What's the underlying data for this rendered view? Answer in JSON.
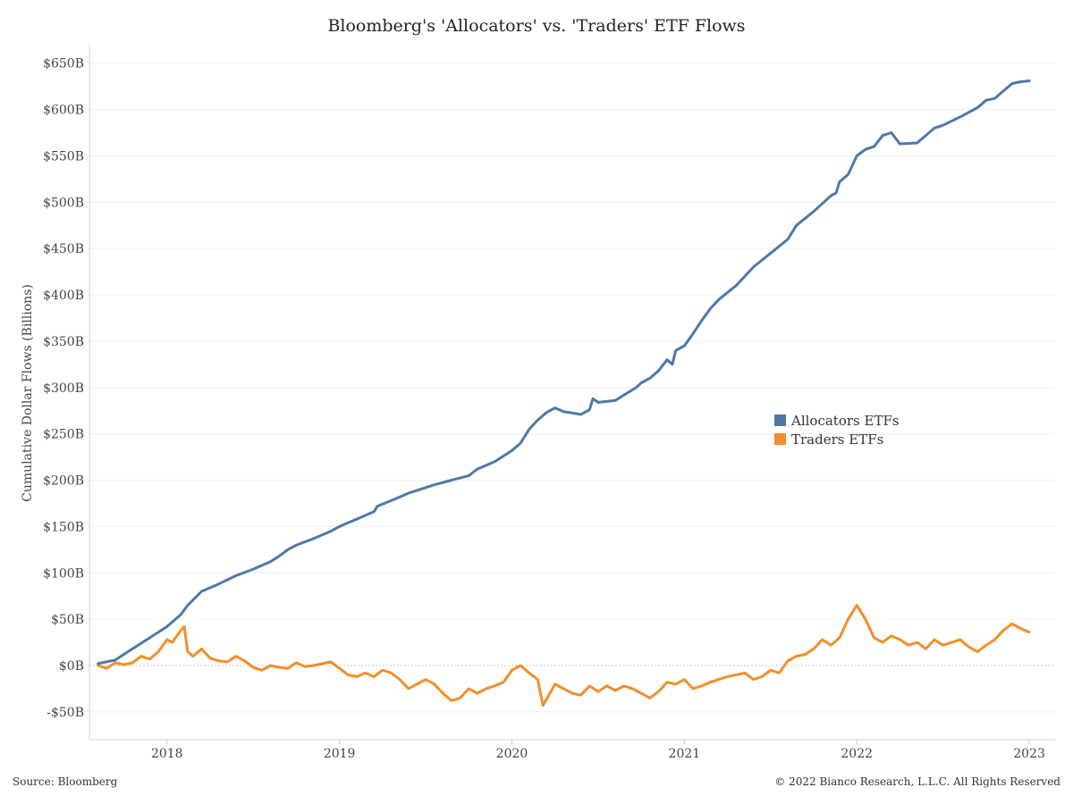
{
  "chart_data": {
    "type": "line",
    "title": "Bloomberg's 'Allocators' vs. 'Traders' ETF Flows",
    "ylabel": "Cumulative Dollar Flows (Billions)",
    "xlabel": "",
    "x_range": [
      2017.55,
      2023.15
    ],
    "ylim": [
      -80,
      670
    ],
    "y_ticks": [
      -50,
      0,
      50,
      100,
      150,
      200,
      250,
      300,
      350,
      400,
      450,
      500,
      550,
      600,
      650
    ],
    "y_tick_labels": [
      "-$50B",
      "$0B",
      "$50B",
      "$100B",
      "$150B",
      "$200B",
      "$250B",
      "$300B",
      "$350B",
      "$400B",
      "$450B",
      "$500B",
      "$550B",
      "$600B",
      "$650B"
    ],
    "x_ticks": [
      2018,
      2019,
      2020,
      2021,
      2022,
      2023
    ],
    "x_tick_labels": [
      "2018",
      "2019",
      "2020",
      "2021",
      "2022",
      "2023"
    ],
    "grid": true,
    "legend_position": "center-right",
    "series": [
      {
        "name": "Allocators ETFs",
        "color": "#4e79a7",
        "points": [
          [
            2017.6,
            2
          ],
          [
            2017.7,
            6
          ],
          [
            2017.8,
            18
          ],
          [
            2017.9,
            30
          ],
          [
            2018.0,
            42
          ],
          [
            2018.08,
            55
          ],
          [
            2018.12,
            65
          ],
          [
            2018.2,
            80
          ],
          [
            2018.3,
            88
          ],
          [
            2018.4,
            97
          ],
          [
            2018.5,
            104
          ],
          [
            2018.6,
            112
          ],
          [
            2018.65,
            118
          ],
          [
            2018.7,
            125
          ],
          [
            2018.75,
            130
          ],
          [
            2018.85,
            137
          ],
          [
            2018.95,
            145
          ],
          [
            2019.0,
            150
          ],
          [
            2019.1,
            158
          ],
          [
            2019.2,
            166
          ],
          [
            2019.22,
            172
          ],
          [
            2019.3,
            178
          ],
          [
            2019.4,
            186
          ],
          [
            2019.5,
            192
          ],
          [
            2019.55,
            195
          ],
          [
            2019.65,
            200
          ],
          [
            2019.75,
            205
          ],
          [
            2019.8,
            212
          ],
          [
            2019.9,
            220
          ],
          [
            2020.0,
            232
          ],
          [
            2020.05,
            240
          ],
          [
            2020.1,
            255
          ],
          [
            2020.15,
            265
          ],
          [
            2020.2,
            273
          ],
          [
            2020.25,
            278
          ],
          [
            2020.3,
            274
          ],
          [
            2020.4,
            271
          ],
          [
            2020.45,
            276
          ],
          [
            2020.47,
            288
          ],
          [
            2020.5,
            284
          ],
          [
            2020.6,
            286
          ],
          [
            2020.65,
            292
          ],
          [
            2020.72,
            300
          ],
          [
            2020.75,
            305
          ],
          [
            2020.8,
            310
          ],
          [
            2020.85,
            318
          ],
          [
            2020.9,
            330
          ],
          [
            2020.93,
            325
          ],
          [
            2020.95,
            340
          ],
          [
            2021.0,
            345
          ],
          [
            2021.05,
            358
          ],
          [
            2021.1,
            372
          ],
          [
            2021.15,
            385
          ],
          [
            2021.2,
            395
          ],
          [
            2021.3,
            410
          ],
          [
            2021.4,
            430
          ],
          [
            2021.5,
            445
          ],
          [
            2021.6,
            460
          ],
          [
            2021.65,
            475
          ],
          [
            2021.75,
            490
          ],
          [
            2021.85,
            507
          ],
          [
            2021.88,
            510
          ],
          [
            2021.9,
            522
          ],
          [
            2021.95,
            530
          ],
          [
            2022.0,
            550
          ],
          [
            2022.05,
            557
          ],
          [
            2022.1,
            560
          ],
          [
            2022.15,
            572
          ],
          [
            2022.2,
            575
          ],
          [
            2022.25,
            563
          ],
          [
            2022.35,
            564
          ],
          [
            2022.45,
            580
          ],
          [
            2022.5,
            583
          ],
          [
            2022.6,
            592
          ],
          [
            2022.7,
            602
          ],
          [
            2022.75,
            610
          ],
          [
            2022.8,
            612
          ],
          [
            2022.85,
            620
          ],
          [
            2022.9,
            628
          ],
          [
            2022.95,
            630
          ],
          [
            2023.0,
            631
          ]
        ]
      },
      {
        "name": "Traders ETFs",
        "color": "#f28e2b",
        "points": [
          [
            2017.6,
            0
          ],
          [
            2017.65,
            -3
          ],
          [
            2017.7,
            3
          ],
          [
            2017.75,
            1
          ],
          [
            2017.8,
            3
          ],
          [
            2017.85,
            10
          ],
          [
            2017.9,
            7
          ],
          [
            2017.95,
            15
          ],
          [
            2018.0,
            28
          ],
          [
            2018.03,
            25
          ],
          [
            2018.08,
            38
          ],
          [
            2018.1,
            42
          ],
          [
            2018.12,
            15
          ],
          [
            2018.15,
            10
          ],
          [
            2018.2,
            18
          ],
          [
            2018.25,
            8
          ],
          [
            2018.3,
            5
          ],
          [
            2018.35,
            4
          ],
          [
            2018.4,
            10
          ],
          [
            2018.45,
            5
          ],
          [
            2018.5,
            -2
          ],
          [
            2018.55,
            -5
          ],
          [
            2018.6,
            0
          ],
          [
            2018.65,
            -2
          ],
          [
            2018.7,
            -3
          ],
          [
            2018.75,
            3
          ],
          [
            2018.8,
            -1
          ],
          [
            2018.85,
            0
          ],
          [
            2018.9,
            2
          ],
          [
            2018.95,
            4
          ],
          [
            2019.0,
            -3
          ],
          [
            2019.05,
            -10
          ],
          [
            2019.1,
            -12
          ],
          [
            2019.15,
            -8
          ],
          [
            2019.2,
            -12
          ],
          [
            2019.25,
            -5
          ],
          [
            2019.3,
            -8
          ],
          [
            2019.35,
            -15
          ],
          [
            2019.4,
            -25
          ],
          [
            2019.45,
            -20
          ],
          [
            2019.5,
            -15
          ],
          [
            2019.55,
            -20
          ],
          [
            2019.6,
            -30
          ],
          [
            2019.65,
            -38
          ],
          [
            2019.7,
            -35
          ],
          [
            2019.75,
            -25
          ],
          [
            2019.8,
            -30
          ],
          [
            2019.85,
            -25
          ],
          [
            2019.9,
            -22
          ],
          [
            2019.95,
            -18
          ],
          [
            2020.0,
            -5
          ],
          [
            2020.05,
            0
          ],
          [
            2020.1,
            -8
          ],
          [
            2020.15,
            -15
          ],
          [
            2020.18,
            -43
          ],
          [
            2020.22,
            -30
          ],
          [
            2020.25,
            -20
          ],
          [
            2020.3,
            -25
          ],
          [
            2020.35,
            -30
          ],
          [
            2020.4,
            -32
          ],
          [
            2020.45,
            -22
          ],
          [
            2020.5,
            -28
          ],
          [
            2020.55,
            -22
          ],
          [
            2020.6,
            -27
          ],
          [
            2020.65,
            -22
          ],
          [
            2020.7,
            -25
          ],
          [
            2020.75,
            -30
          ],
          [
            2020.8,
            -35
          ],
          [
            2020.85,
            -28
          ],
          [
            2020.9,
            -18
          ],
          [
            2020.95,
            -20
          ],
          [
            2021.0,
            -15
          ],
          [
            2021.05,
            -25
          ],
          [
            2021.1,
            -22
          ],
          [
            2021.15,
            -18
          ],
          [
            2021.2,
            -15
          ],
          [
            2021.25,
            -12
          ],
          [
            2021.3,
            -10
          ],
          [
            2021.35,
            -8
          ],
          [
            2021.4,
            -15
          ],
          [
            2021.45,
            -12
          ],
          [
            2021.5,
            -5
          ],
          [
            2021.55,
            -8
          ],
          [
            2021.6,
            5
          ],
          [
            2021.65,
            10
          ],
          [
            2021.7,
            12
          ],
          [
            2021.75,
            18
          ],
          [
            2021.8,
            28
          ],
          [
            2021.85,
            22
          ],
          [
            2021.9,
            30
          ],
          [
            2021.95,
            50
          ],
          [
            2022.0,
            65
          ],
          [
            2022.05,
            50
          ],
          [
            2022.1,
            30
          ],
          [
            2022.15,
            25
          ],
          [
            2022.2,
            32
          ],
          [
            2022.25,
            28
          ],
          [
            2022.3,
            22
          ],
          [
            2022.35,
            25
          ],
          [
            2022.4,
            18
          ],
          [
            2022.45,
            28
          ],
          [
            2022.5,
            22
          ],
          [
            2022.55,
            25
          ],
          [
            2022.6,
            28
          ],
          [
            2022.65,
            20
          ],
          [
            2022.7,
            15
          ],
          [
            2022.75,
            22
          ],
          [
            2022.8,
            28
          ],
          [
            2022.85,
            38
          ],
          [
            2022.9,
            45
          ],
          [
            2022.95,
            40
          ],
          [
            2023.0,
            36
          ]
        ]
      }
    ]
  },
  "footer": {
    "source": "Source: Bloomberg",
    "copyright": "© 2022 Bianco Research, L.L.C. All Rights Reserved"
  }
}
